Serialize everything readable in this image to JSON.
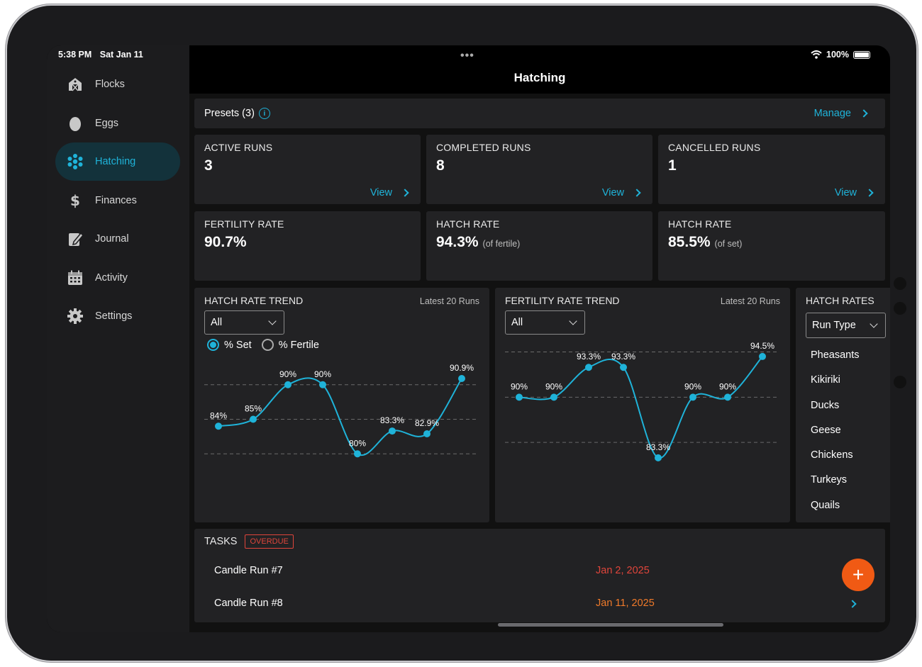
{
  "status": {
    "time": "5:38 PM",
    "date": "Sat Jan 11",
    "battery": "100%"
  },
  "nav": [
    {
      "label": "Flocks",
      "icon": "barn-icon"
    },
    {
      "label": "Eggs",
      "icon": "egg-icon"
    },
    {
      "label": "Hatching",
      "icon": "hatching-icon",
      "active": true
    },
    {
      "label": "Finances",
      "icon": "dollar-icon"
    },
    {
      "label": "Journal",
      "icon": "journal-icon"
    },
    {
      "label": "Activity",
      "icon": "calendar-icon"
    },
    {
      "label": "Settings",
      "icon": "gear-icon"
    }
  ],
  "page_title": "Hatching",
  "presets": {
    "label": "Presets (3)",
    "manage": "Manage"
  },
  "stats": [
    {
      "title": "ACTIVE RUNS",
      "value": "3",
      "link": "View"
    },
    {
      "title": "COMPLETED RUNS",
      "value": "8",
      "link": "View"
    },
    {
      "title": "CANCELLED RUNS",
      "value": "1",
      "link": "View"
    },
    {
      "title": "FERTILITY RATE",
      "value": "90.7%",
      "sub": ""
    },
    {
      "title": "HATCH RATE",
      "value": "94.3%",
      "sub": "(of fertile)"
    },
    {
      "title": "HATCH RATE",
      "value": "85.5%",
      "sub": "(of set)"
    }
  ],
  "hatch_trend": {
    "title": "HATCH RATE TREND",
    "latest": "Latest 20 Runs",
    "filter": "All",
    "radio_set": "% Set",
    "radio_fertile": "% Fertile"
  },
  "fertility_trend": {
    "title": "FERTILITY RATE TREND",
    "latest": "Latest 20 Runs",
    "filter": "All"
  },
  "hatch_rates": {
    "title": "HATCH RATES",
    "filter": "Run Type",
    "items": [
      "Pheasants",
      "Kikiriki",
      "Ducks",
      "Geese",
      "Chickens",
      "Turkeys",
      "Quails"
    ]
  },
  "tasks": {
    "title": "TASKS",
    "badge": "OVERDUE",
    "rows": [
      {
        "name": "Candle Run #7",
        "date": "Jan 2, 2025",
        "color": "#e0453b"
      },
      {
        "name": "Candle Run #8",
        "date": "Jan 11, 2025",
        "color": "#f07a2a"
      }
    ]
  },
  "colors": {
    "accent": "#1fb3d9",
    "fab": "#f05a14",
    "overdue": "#e0453b"
  },
  "chart_data": [
    {
      "type": "line",
      "name": "hatch-rate-trend",
      "values": [
        84,
        85,
        90,
        90,
        80,
        83.3,
        82.9,
        90.9
      ],
      "labels": [
        "84%",
        "85%",
        "90%",
        "90%",
        "80%",
        "83.3%",
        "82.9%",
        "90.9%"
      ],
      "ylim": [
        75,
        95
      ],
      "grid": [
        80,
        85,
        90
      ]
    },
    {
      "type": "line",
      "name": "fertility-rate-trend",
      "values": [
        90,
        90,
        93.3,
        93.3,
        83.3,
        90,
        90,
        94.5
      ],
      "labels": [
        "90%",
        "90%",
        "93.3%",
        "93.3%",
        "83.3%",
        "90%",
        "90%",
        "94.5%"
      ],
      "ylim": [
        75,
        100
      ],
      "grid": [
        85,
        90,
        95
      ]
    }
  ]
}
